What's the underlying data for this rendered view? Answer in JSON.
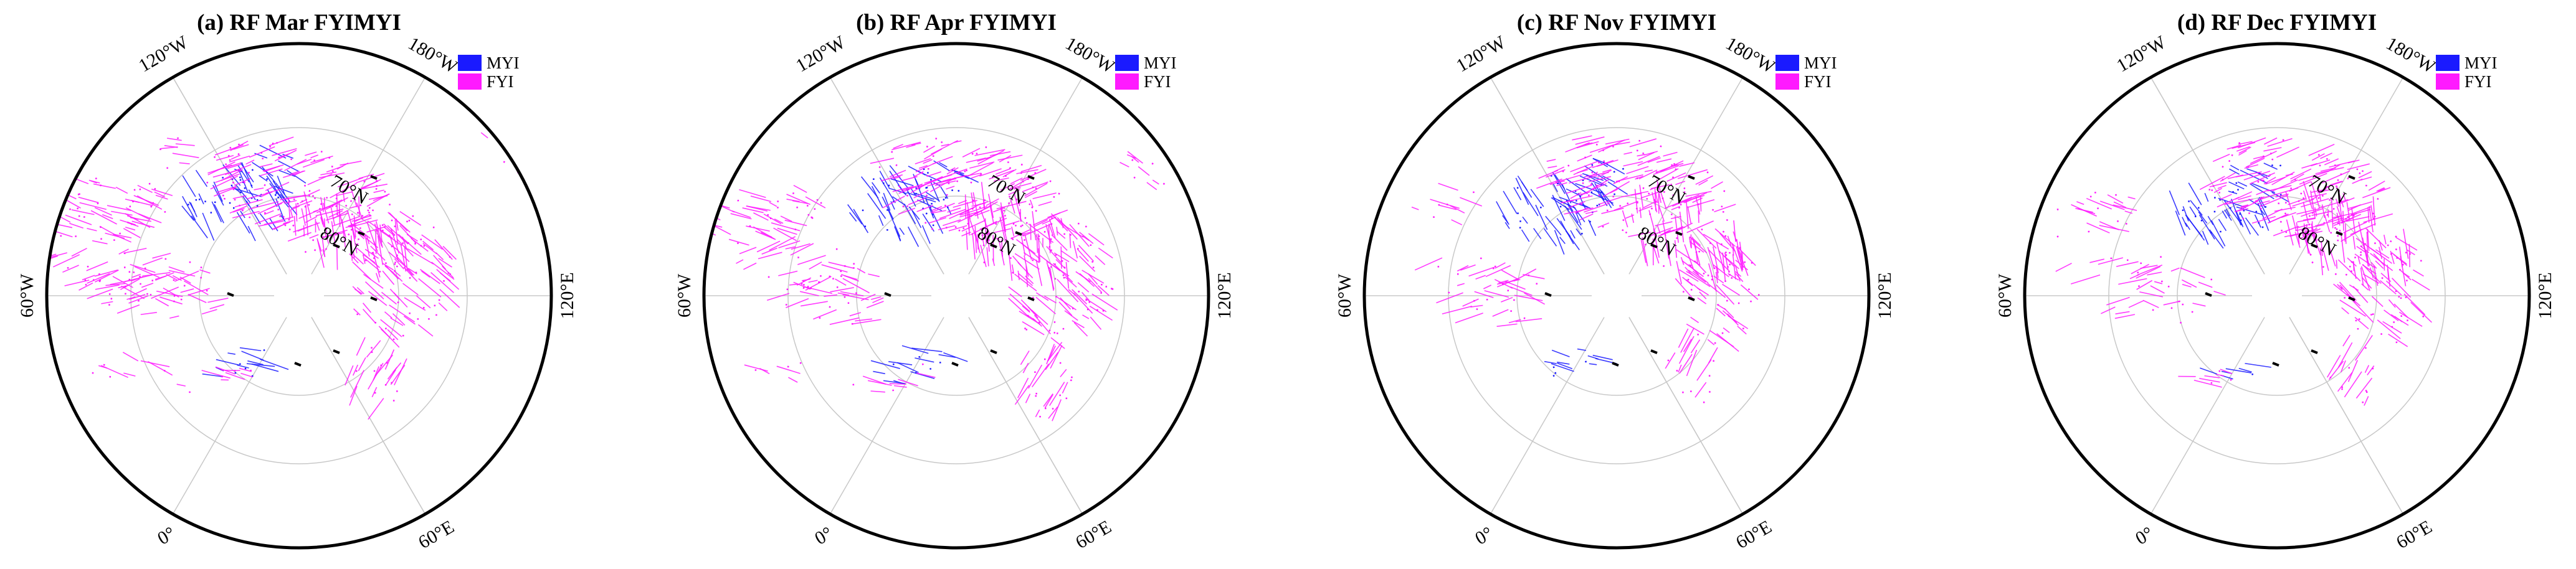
{
  "colors": {
    "MYI": "#1a1aff",
    "FYI": "#ff1aff",
    "grid": "#c8c8c8",
    "boundary": "#000000"
  },
  "legend": [
    {
      "key": "MYI",
      "label": "MYI"
    },
    {
      "key": "FYI",
      "label": "FYI"
    }
  ],
  "lon_labels": {
    "w120": "120°W",
    "w180": "180°W",
    "w60": "60°W",
    "e120": "120°E",
    "e0": "0°",
    "e60": "60°E"
  },
  "lat_labels": {
    "n70": "70°N",
    "n80": "80°N"
  },
  "panels": [
    {
      "id": "a",
      "title": "(a) RF Mar FYIMYI",
      "show_80N_label": true
    },
    {
      "id": "b",
      "title": "(b) RF Apr FYIMYI",
      "show_80N_label": true
    },
    {
      "id": "c",
      "title": "(c) RF Nov FYIMYI",
      "show_80N_label": true
    },
    {
      "id": "d",
      "title": "(d) RF Dec FYIMYI",
      "show_80N_label": true
    }
  ]
}
